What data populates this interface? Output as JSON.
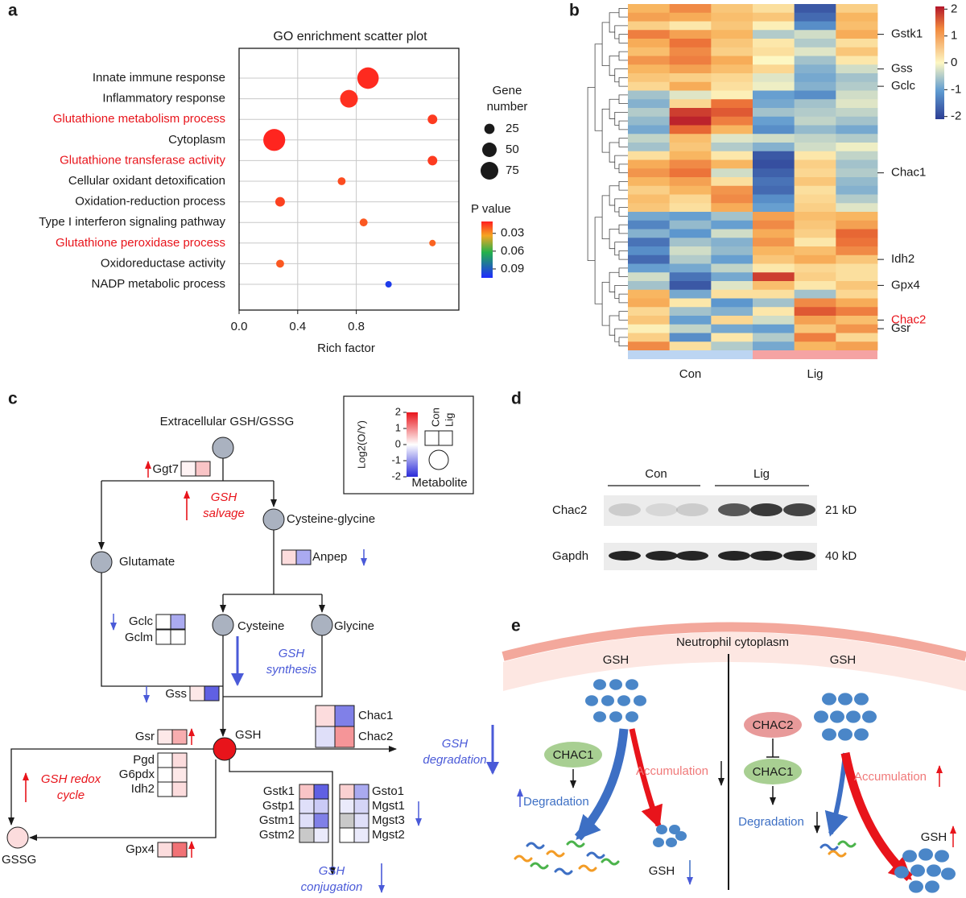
{
  "panel_labels": [
    "a",
    "b",
    "c",
    "d",
    "e"
  ],
  "chart_data": [
    {
      "type": "scatter",
      "title": "GO enrichment scatter plot",
      "categories": [
        "Innate immune response",
        "Inflammatory response",
        "Glutathione metabolism process",
        "Cytoplasm",
        "Glutathione transferase activity",
        "Cellular oxidant detoxification",
        "Oxidation-reduction process",
        "Type I interferon signaling pathway",
        "Glutathione peroxidase process",
        "Oxidoreductase activity",
        "NADP metabolic process"
      ],
      "category_colors": [
        "#1a1a1a",
        "#1a1a1a",
        "#e8141b",
        "#1a1a1a",
        "#e8141b",
        "#1a1a1a",
        "#1a1a1a",
        "#1a1a1a",
        "#e8141b",
        "#1a1a1a",
        "#1a1a1a"
      ],
      "values": [
        0.88,
        0.75,
        1.32,
        0.24,
        1.32,
        0.7,
        0.28,
        0.85,
        1.32,
        0.28,
        1.02
      ],
      "sizes": [
        110,
        75,
        22,
        115,
        22,
        15,
        22,
        15,
        10,
        15,
        10
      ],
      "p_values": [
        0.012,
        0.013,
        0.015,
        0.011,
        0.015,
        0.018,
        0.016,
        0.02,
        0.022,
        0.02,
        0.1
      ],
      "xlabel": "Rich factor",
      "xlim": [
        0,
        1.5
      ],
      "xticks": [
        {
          "value": 0,
          "label": "0.0"
        },
        0.4,
        0.8
      ],
      "grid": true,
      "size_legend": {
        "title": "Gene number",
        "values": [
          25,
          50,
          75
        ]
      },
      "color_legend": {
        "title": "P value",
        "lim": [
          0.01,
          0.105
        ],
        "ticks": [
          0.03,
          0.06,
          0.09
        ]
      }
    },
    {
      "type": "heatmap",
      "values": [
        [
          0.8,
          1.2,
          0.6,
          0.3,
          -1.8,
          0.5
        ],
        [
          1.0,
          0.9,
          0.7,
          0.6,
          -1.6,
          0.8
        ],
        [
          0.5,
          0.2,
          0.6,
          0.1,
          -1.2,
          0.7
        ],
        [
          1.3,
          1.0,
          0.8,
          -0.5,
          -0.3,
          0.9
        ],
        [
          0.9,
          1.4,
          0.6,
          0.2,
          -0.5,
          0.3
        ],
        [
          0.7,
          1.2,
          0.5,
          0.3,
          -0.2,
          0.6
        ],
        [
          1.1,
          1.3,
          0.9,
          0.0,
          -0.6,
          0.2
        ],
        [
          0.8,
          1.0,
          0.7,
          0.4,
          -0.8,
          -0.3
        ],
        [
          0.6,
          0.5,
          0.4,
          -0.2,
          -0.9,
          -0.6
        ],
        [
          0.4,
          0.9,
          0.3,
          -0.1,
          -0.8,
          -0.5
        ],
        [
          -0.6,
          -0.2,
          0.1,
          -1.0,
          -1.2,
          -0.3
        ],
        [
          -0.8,
          0.4,
          1.4,
          -0.9,
          -0.6,
          -0.2
        ],
        [
          -0.5,
          1.8,
          1.6,
          -0.6,
          -0.5,
          -0.4
        ],
        [
          -0.7,
          2.0,
          1.3,
          -1.0,
          -0.4,
          -0.6
        ],
        [
          -0.9,
          1.5,
          0.8,
          -1.2,
          -0.7,
          -0.9
        ],
        [
          -0.4,
          0.7,
          -0.2,
          -0.3,
          -0.4,
          -0.5
        ],
        [
          -0.6,
          0.6,
          -0.5,
          -0.8,
          -0.3,
          -0.1
        ],
        [
          0.3,
          0.8,
          0.2,
          -1.8,
          0.2,
          -0.4
        ],
        [
          0.9,
          1.2,
          0.8,
          -1.9,
          0.5,
          -0.6
        ],
        [
          1.1,
          1.4,
          -0.3,
          -1.7,
          0.4,
          -0.5
        ],
        [
          0.8,
          1.0,
          0.3,
          -1.5,
          0.6,
          -0.7
        ],
        [
          0.5,
          0.8,
          1.1,
          -1.6,
          0.3,
          -0.8
        ],
        [
          0.7,
          0.4,
          1.2,
          -1.2,
          0.4,
          -0.5
        ],
        [
          0.6,
          0.3,
          0.9,
          -1.0,
          0.5,
          -0.2
        ],
        [
          -0.9,
          -1.0,
          -0.6,
          1.0,
          0.7,
          0.8
        ],
        [
          -1.3,
          -0.7,
          -1.0,
          1.2,
          0.6,
          1.0
        ],
        [
          -0.8,
          -1.1,
          -0.3,
          0.9,
          0.5,
          1.5
        ],
        [
          -1.5,
          -0.6,
          -0.8,
          1.1,
          0.2,
          1.4
        ],
        [
          -1.2,
          -0.3,
          -0.7,
          0.8,
          0.7,
          1.2
        ],
        [
          -1.6,
          -0.5,
          -1.0,
          0.6,
          0.9,
          0.6
        ],
        [
          -1.0,
          -0.9,
          -0.4,
          0.2,
          0.4,
          0.3
        ],
        [
          -0.3,
          -1.5,
          -0.9,
          1.8,
          0.5,
          0.3
        ],
        [
          -0.6,
          -1.8,
          -0.2,
          0.7,
          0.2,
          0.6
        ],
        [
          0.8,
          -0.9,
          0.3,
          0.3,
          -0.6,
          0.4
        ],
        [
          0.9,
          0.2,
          -1.1,
          -0.6,
          1.2,
          0.9
        ],
        [
          0.4,
          -0.6,
          -0.8,
          0.2,
          1.6,
          1.3
        ],
        [
          0.6,
          -1.0,
          0.4,
          -0.3,
          1.0,
          0.7
        ],
        [
          0.1,
          -0.4,
          -0.9,
          -1.0,
          0.6,
          1.1
        ],
        [
          0.5,
          -1.2,
          0.2,
          -0.5,
          1.3,
          0.4
        ],
        [
          1.2,
          0.3,
          -0.5,
          -0.9,
          0.8,
          1.0
        ]
      ],
      "row_labels": [
        null,
        null,
        null,
        "Gstk1",
        null,
        null,
        null,
        "Gss",
        null,
        "Gclc",
        null,
        null,
        null,
        null,
        null,
        null,
        null,
        null,
        null,
        "Chac1",
        null,
        null,
        null,
        null,
        null,
        null,
        null,
        null,
        null,
        "Idh2",
        null,
        null,
        "Gpx4",
        null,
        null,
        null,
        "Chac2",
        "Gsr",
        null,
        null
      ],
      "row_label_colors": [
        null,
        null,
        null,
        "#1a1a1a",
        null,
        null,
        null,
        "#1a1a1a",
        null,
        "#1a1a1a",
        null,
        null,
        null,
        null,
        null,
        null,
        null,
        null,
        null,
        "#1a1a1a",
        null,
        null,
        null,
        null,
        null,
        null,
        null,
        null,
        null,
        "#1a1a1a",
        null,
        null,
        "#1a1a1a",
        null,
        null,
        null,
        "#e8141b",
        "#1a1a1a",
        null,
        null
      ],
      "groups": [
        {
          "name": "Con",
          "color": "#bcd5f2"
        },
        {
          "name": "Lig",
          "color": "#f5a3a3"
        }
      ],
      "color_lim": [
        -2.1,
        2.1
      ],
      "color_ticks": [
        2,
        1,
        0,
        -1,
        -2
      ]
    }
  ],
  "pathway": {
    "metabolites": [
      {
        "name": "Extracellular GSH/GSSG",
        "value": null
      },
      {
        "name": "Cysteine-glycine",
        "value": null
      },
      {
        "name": "Glutamate",
        "value": null
      },
      {
        "name": "Cysteine",
        "value": null
      },
      {
        "name": "Glycine",
        "value": null
      },
      {
        "name": "GSH",
        "value": 2
      },
      {
        "name": "GSSG",
        "value": 0.3
      }
    ],
    "processes": [
      {
        "label": "GSH salvage",
        "direction": "up"
      },
      {
        "label": "GSH synthesis",
        "direction": "down"
      },
      {
        "label": "GSH redox cycle",
        "direction": "up"
      },
      {
        "label": "GSH degradation",
        "direction": "down"
      },
      {
        "label": "GSH conjugation",
        "direction": "down"
      }
    ],
    "genes": [
      {
        "name": "Ggt7",
        "values": [
          0.1,
          0.5
        ],
        "direction": "up"
      },
      {
        "name": "Anpep",
        "values": [
          0.3,
          -0.8
        ],
        "direction": "down"
      },
      {
        "name": "Gclc",
        "values": [
          0,
          -0.8
        ],
        "direction": "down"
      },
      {
        "name": "Gclm",
        "values": [
          0,
          0
        ]
      },
      {
        "name": "Gss",
        "values": [
          0.2,
          -1.5
        ],
        "direction": "down"
      },
      {
        "name": "Gsr",
        "values": [
          0.2,
          0.7
        ],
        "direction": "up"
      },
      {
        "name": "Pgd",
        "values": [
          0,
          0.3
        ]
      },
      {
        "name": "G6pdx",
        "values": [
          0,
          0.2
        ]
      },
      {
        "name": "Idh2",
        "values": [
          0,
          0.3
        ]
      },
      {
        "name": "Gpx4",
        "values": [
          0.3,
          1.2
        ],
        "direction": "up"
      },
      {
        "name": "Chac1",
        "values": [
          0.3,
          -1.2
        ]
      },
      {
        "name": "Chac2",
        "values": [
          -0.3,
          0.9
        ]
      },
      {
        "name": "Gstk1",
        "values": [
          0.5,
          -1.5
        ]
      },
      {
        "name": "Gstp1",
        "values": [
          -0.3,
          -0.5
        ]
      },
      {
        "name": "Gstm1",
        "values": [
          -0.3,
          -1.2
        ]
      },
      {
        "name": "Gstm2",
        "values": [
          null,
          -0.2
        ]
      },
      {
        "name": "Gsto1",
        "values": [
          0.4,
          -0.8
        ]
      },
      {
        "name": "Mgst1",
        "values": [
          -0.2,
          -0.4
        ],
        "direction": "down"
      },
      {
        "name": "Mgst3",
        "values": [
          null,
          -0.3
        ]
      },
      {
        "name": "Mgst2",
        "values": [
          0,
          -0.2
        ]
      }
    ],
    "legend": {
      "title": "Log2(O/Y)",
      "lim": [
        -2,
        2
      ],
      "ticks": [
        2,
        1,
        0,
        -1,
        -2
      ],
      "columns": [
        "Con",
        "Lig"
      ],
      "metabolite_label": "Metabolite"
    }
  },
  "blot": {
    "groups": [
      "Con",
      "Lig"
    ],
    "bands": [
      {
        "name": "Chac2",
        "size": "21 kD",
        "intensity": [
          0.15,
          0.1,
          0.15,
          0.7,
          0.85,
          0.8
        ]
      },
      {
        "name": "Gapdh",
        "size": "40 kD",
        "intensity": [
          0.95,
          0.95,
          0.95,
          0.95,
          0.95,
          0.95
        ]
      }
    ]
  },
  "schematic": {
    "compartment": "Neutrophil cytoplasm",
    "left": {
      "substrate": "GSH",
      "enzyme": "CHAC1",
      "accumulation": "Accumulation",
      "degradation": "Degradation",
      "product": "GSH"
    },
    "right": {
      "substrate": "GSH",
      "inhibitor": "CHAC2",
      "enzyme": "CHAC1",
      "accumulation": "Accumulation",
      "degradation": "Degradation",
      "product": "GSH"
    }
  }
}
